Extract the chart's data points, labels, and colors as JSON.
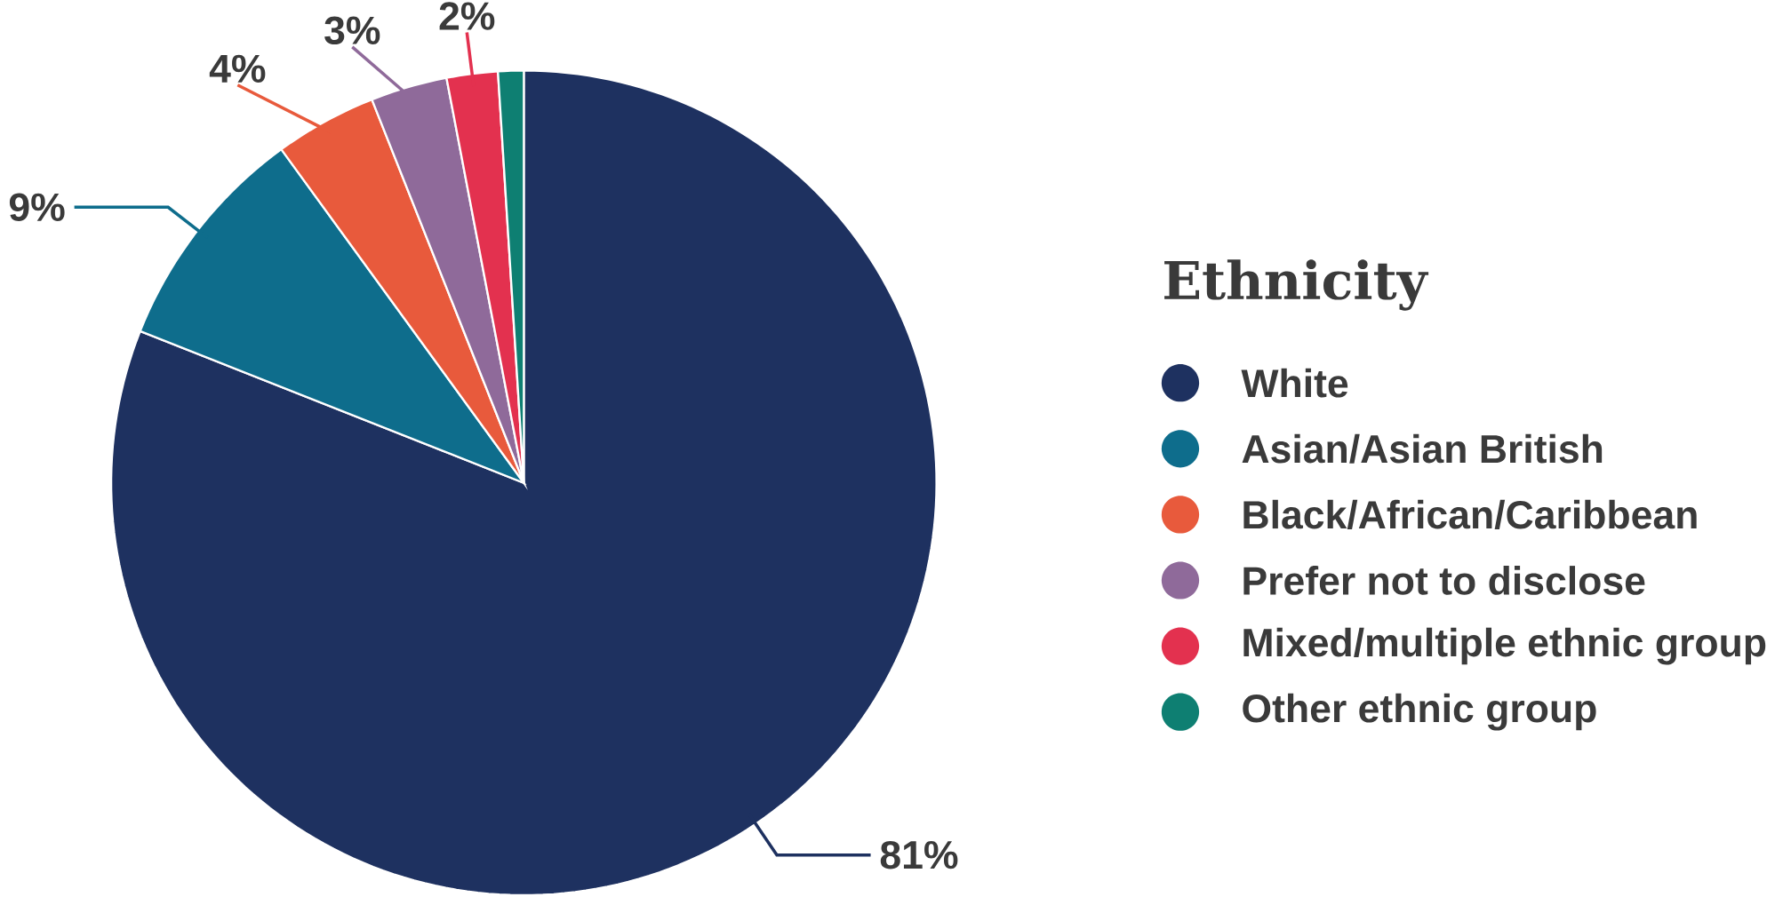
{
  "chart_data": {
    "type": "pie",
    "legend_title": "Ethnicity",
    "legend": "right",
    "categories": [
      "White",
      "Asian/Asian British",
      "Black/African/Caribbean",
      "Prefer not to disclose",
      "Mixed/multiple ethnic group",
      "Other ethnic group"
    ],
    "values": [
      81,
      9,
      4,
      3,
      2,
      1
    ],
    "value_labels": [
      "81%",
      "9%",
      "4%",
      "3%",
      "2%",
      null
    ],
    "colors": [
      "#1e3160",
      "#0e6d8c",
      "#e85a3c",
      "#8f6a9a",
      "#e3314f",
      "#0e7f72"
    ]
  }
}
